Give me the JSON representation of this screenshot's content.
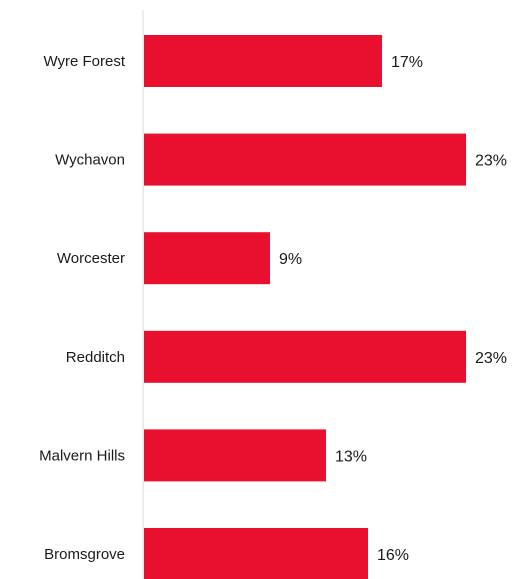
{
  "chart_data": {
    "type": "bar",
    "orientation": "horizontal",
    "categories": [
      "Wyre Forest",
      "Wychavon",
      "Worcester",
      "Redditch",
      "Malvern Hills",
      "Bromsgrove"
    ],
    "values": [
      17,
      23,
      9,
      23,
      13,
      16
    ],
    "value_labels": [
      "17%",
      "23%",
      "9%",
      "23%",
      "13%",
      "16%"
    ],
    "unit": "%",
    "xlim": [
      0,
      25
    ],
    "grid": false,
    "legend": "none",
    "bar_color": "#e8102e",
    "axis_color": "#d9d9d9"
  }
}
